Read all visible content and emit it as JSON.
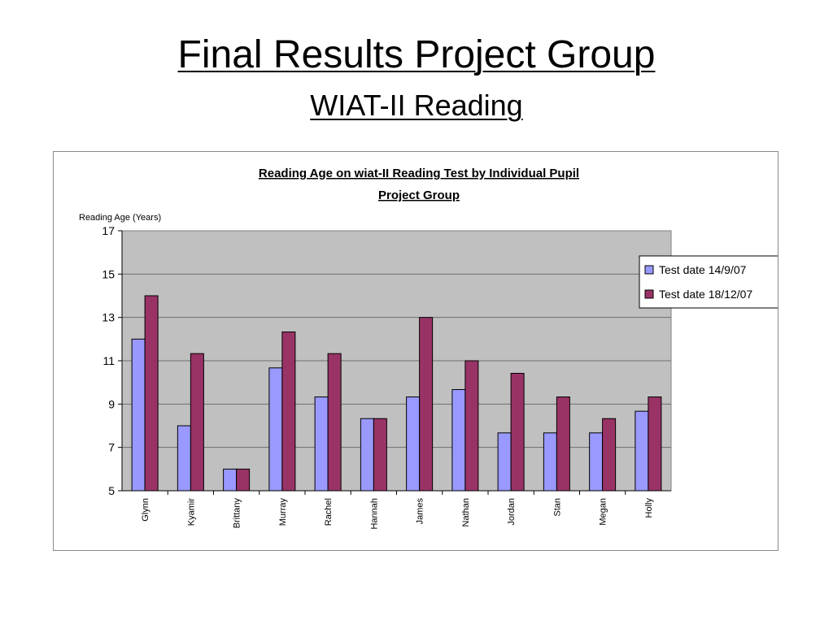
{
  "slide": {
    "title": "Final Results Project Group",
    "subtitle": "WIAT-II Reading"
  },
  "colors": {
    "plot_background": "#c0c0c0",
    "series_1": "#9999ff",
    "series_2": "#993366",
    "gridline": "#6e6e6e"
  },
  "chart_data": {
    "type": "bar",
    "title": "Reading Age on wiat-II Reading Test by Individual Pupil",
    "subtitle": "Project Group",
    "ylabel": "Reading Age (Years)",
    "xlabel": "",
    "ylim": [
      5,
      17
    ],
    "yticks": [
      5,
      7,
      9,
      11,
      13,
      15,
      17
    ],
    "grid": true,
    "legend_position": "right",
    "categories": [
      "Glynn",
      "Kyamir",
      "Brittany",
      "Murray",
      "Rachel",
      "Hannah",
      "James",
      "Nathan",
      "Jordan",
      "Stan",
      "Megan",
      "Holly"
    ],
    "series": [
      {
        "name": "Test date 14/9/07",
        "values": [
          12,
          8,
          6,
          10.67,
          9.33,
          8.33,
          9.33,
          9.67,
          7.67,
          7.67,
          7.67,
          8.67
        ]
      },
      {
        "name": "Test date 18/12/07",
        "values": [
          14,
          11.33,
          6,
          12.33,
          11.33,
          8.33,
          13,
          11,
          10.42,
          9.33,
          8.33,
          9.33
        ]
      }
    ]
  }
}
